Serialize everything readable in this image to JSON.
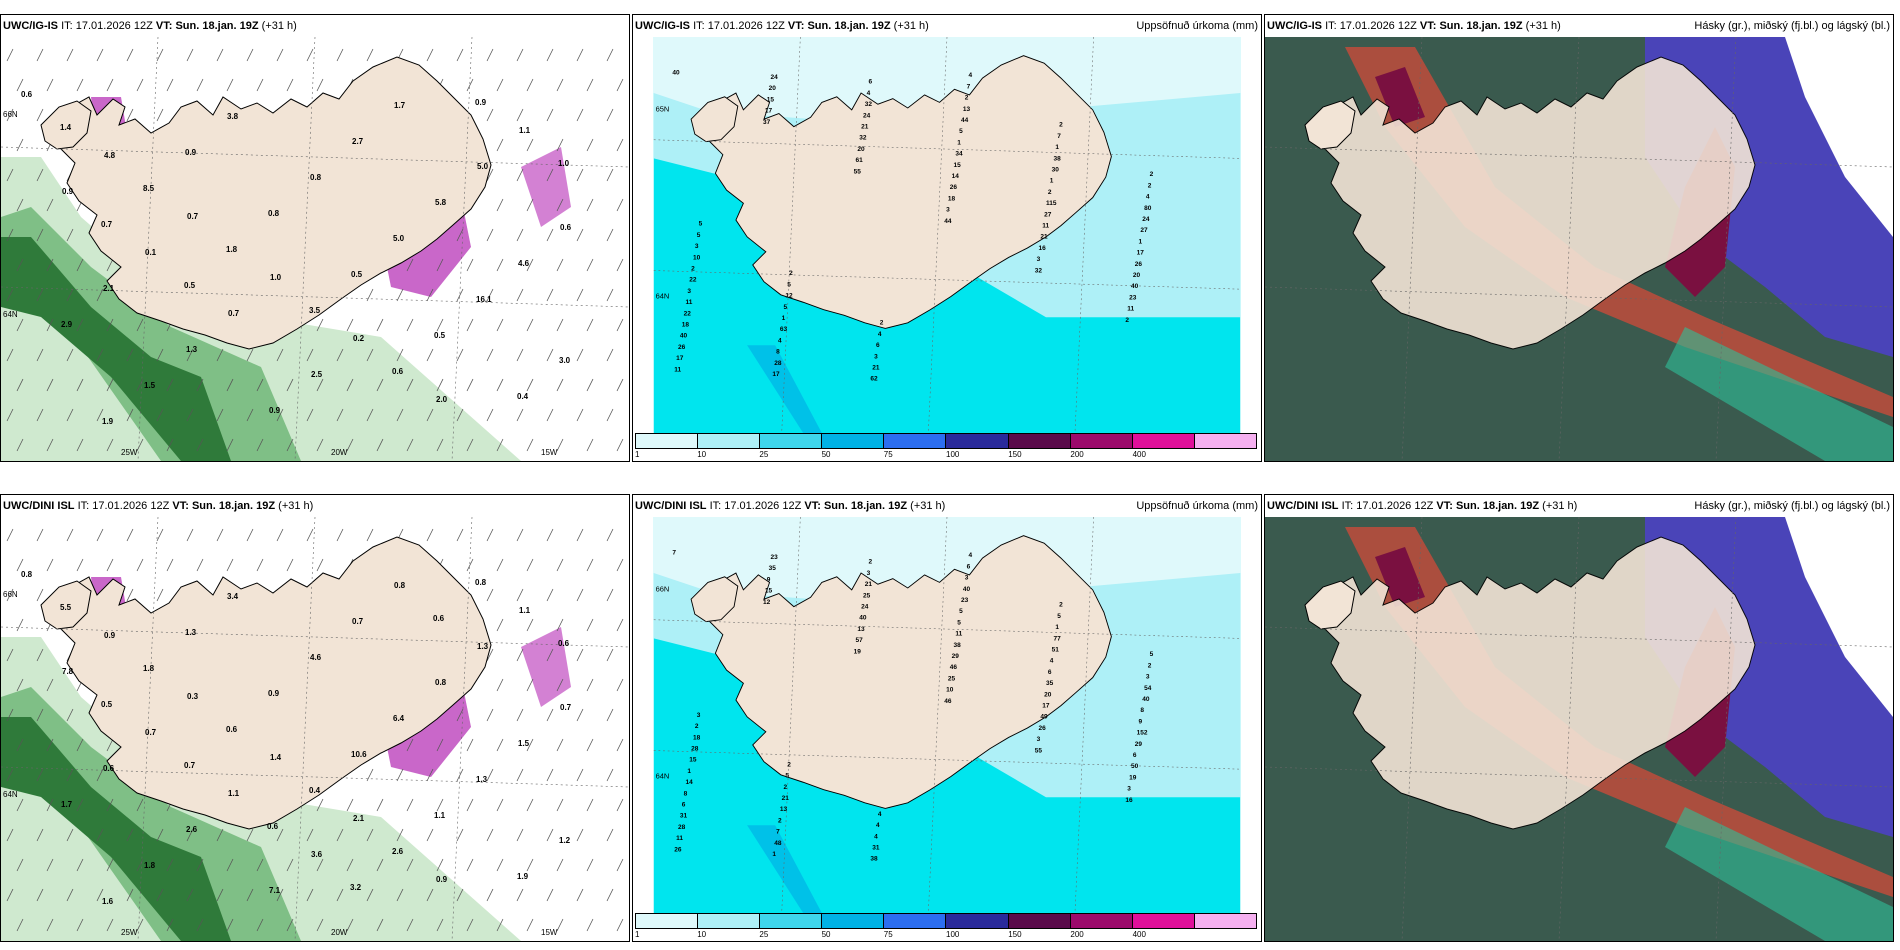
{
  "panels": [
    {
      "id": "igis-wind",
      "model": "UWC/IG-IS",
      "it_label": "IT:",
      "it": "17.01.2026 12Z",
      "vt_label": "VT:",
      "vt": "Sun. 18.jan. 19Z",
      "lead": "(+31 h)",
      "right_title": "",
      "lat_labels": [
        "66N",
        "64N",
        "25W",
        "20W",
        "15W"
      ],
      "values": [
        "0.6",
        "4.8",
        "0.7",
        "1.0",
        "0.2",
        "2.0",
        "1.1",
        "0.9",
        "0.1",
        "0.7",
        "2.5",
        "1.7",
        "5.0",
        "0.6",
        "2.1",
        "1.3",
        "0.9",
        "2.7",
        "5.8",
        "4.6",
        "2.9",
        "1.5",
        "3.8",
        "0.8",
        "5.0",
        "16.1",
        "3.0",
        "1.9",
        "0.9",
        "0.8",
        "0.5",
        "0.5",
        "0.4",
        "1.4",
        "8.5",
        "1.8",
        "3.5",
        "0.6",
        "0.9",
        "1.0",
        "0.7",
        "0.5"
      ]
    },
    {
      "id": "igis-precip",
      "model": "UWC/IG-IS",
      "it_label": "IT:",
      "it": "17.01.2026 12Z",
      "vt_label": "VT:",
      "vt": "Sun. 18.jan. 19Z",
      "lead": "(+31 h)",
      "right_title": "Uppsöfnuð úrkoma (mm)",
      "lat_labels": [
        "65N",
        "64N"
      ],
      "values": [
        "40",
        "37",
        "55",
        "44",
        "32",
        "2",
        "11",
        "17",
        "61",
        "3",
        "3",
        "11",
        "17",
        "15",
        "20",
        "18",
        "16",
        "23",
        "26",
        "20",
        "32",
        "26",
        "21",
        "40",
        "40",
        "24",
        "21",
        "14",
        "11",
        "20",
        "18",
        "17",
        "24",
        "15",
        "27",
        "26",
        "22",
        "28",
        "32",
        "34",
        "115",
        "17",
        "11",
        "8",
        "4",
        "1",
        "2",
        "1",
        "3",
        "4",
        "6",
        "5",
        "1",
        "27",
        "22",
        "63",
        "62",
        "44",
        "30",
        "24",
        "2",
        "1",
        "21",
        "13",
        "38",
        "80",
        "10",
        "5",
        "3",
        "2",
        "1",
        "4",
        "3",
        "12",
        "6",
        "7",
        "7",
        "2",
        "5",
        "5",
        "4",
        "4",
        "2",
        "2",
        "5",
        "2",
        "2"
      ]
    },
    {
      "id": "igis-cloud",
      "model": "UWC/IG-IS",
      "it_label": "IT:",
      "it": "17.01.2026 12Z",
      "vt_label": "VT:",
      "vt": "Sun. 18.jan. 19Z",
      "lead": "(+31 h)",
      "right_title": "Hásky (gr.), miðský (fj.bl.) og lágský (bl.)",
      "lat_labels": [],
      "values": []
    },
    {
      "id": "dini-wind",
      "model": "UWC/DINI ISL",
      "it_label": "IT:",
      "it": "17.01.2026 12Z",
      "vt_label": "VT:",
      "vt": "Sun. 18.jan. 19Z",
      "lead": "(+31 h)",
      "right_title": "",
      "lat_labels": [
        "66N",
        "64N",
        "25W",
        "20W",
        "15W"
      ],
      "values": [
        "0.8",
        "0.9",
        "0.3",
        "1.4",
        "2.1",
        "0.9",
        "1.1",
        "7.8",
        "0.7",
        "1.1",
        "3.6",
        "0.8",
        "1.3",
        "0.7",
        "0.6",
        "2.6",
        "7.1",
        "0.7",
        "0.8",
        "1.5",
        "1.7",
        "1.8",
        "3.4",
        "4.6",
        "6.4",
        "1.3",
        "1.2",
        "1.6",
        "1.3",
        "0.9",
        "10.6",
        "1.1",
        "1.9",
        "5.5",
        "1.8",
        "0.6",
        "0.4",
        "2.6",
        "0.8",
        "0.6",
        "0.5",
        "0.7",
        "0.6",
        "3.2",
        "0.6"
      ]
    },
    {
      "id": "dini-precip",
      "model": "UWC/DINI ISL",
      "it_label": "IT:",
      "it": "17.01.2026 12Z",
      "vt_label": "VT:",
      "vt": "Sun. 18.jan. 19Z",
      "lead": "(+31 h)",
      "right_title": "Uppsöfnuð úrkoma (mm)",
      "lat_labels": [
        "66N",
        "64N"
      ],
      "values": [
        "7",
        "12",
        "19",
        "46",
        "55",
        "16",
        "26",
        "15",
        "57",
        "10",
        "3",
        "3",
        "11",
        "9",
        "13",
        "25",
        "26",
        "19",
        "28",
        "35",
        "40",
        "46",
        "49",
        "50",
        "31",
        "23",
        "24",
        "29",
        "17",
        "6",
        "6",
        "1",
        "25",
        "38",
        "20",
        "29",
        "8",
        "48",
        "21",
        "11",
        "35",
        "152",
        "14",
        "7",
        "3",
        "5",
        "6",
        "9",
        "1",
        "2",
        "2",
        "5",
        "4",
        "8",
        "15",
        "13",
        "38",
        "23",
        "51",
        "40",
        "28",
        "21",
        "31",
        "40",
        "77",
        "54",
        "18",
        "2",
        "4",
        "3",
        "1",
        "3",
        "2",
        "5",
        "4",
        "6",
        "5",
        "2",
        "3",
        "2",
        "4",
        "4",
        "2",
        "5"
      ]
    },
    {
      "id": "dini-cloud",
      "model": "UWC/DINI ISL",
      "it_label": "IT:",
      "it": "17.01.2026 12Z",
      "vt_label": "VT:",
      "vt": "Sun. 18.jan. 19Z",
      "lead": "(+31 h)",
      "right_title": "Hásky (gr.), miðský (fj.bl.) og lágský (bl.)",
      "lat_labels": [],
      "values": []
    }
  ],
  "precip_legend": {
    "colors": [
      "#dff9fb",
      "#aef0f7",
      "#3fd6ec",
      "#00b2e5",
      "#2c6ef0",
      "#2a2a9b",
      "#5a0a4a",
      "#9c0a6b",
      "#e0109a",
      "#f5b0f0"
    ],
    "ticks": [
      "1",
      "10",
      "25",
      "50",
      "75",
      "100",
      "150",
      "200",
      "400"
    ]
  },
  "colors": {
    "land": "#f2e4d6",
    "sea_precip": "#00e5ee",
    "cloud_sea": "#3a5a4e",
    "cloud_high": "#c04c3c",
    "cloud_mid": "#4a44b8",
    "cloud_mid_dark": "#7a1040",
    "wind_green": "#2f7a3a",
    "wind_purple": "#c04cc0"
  }
}
